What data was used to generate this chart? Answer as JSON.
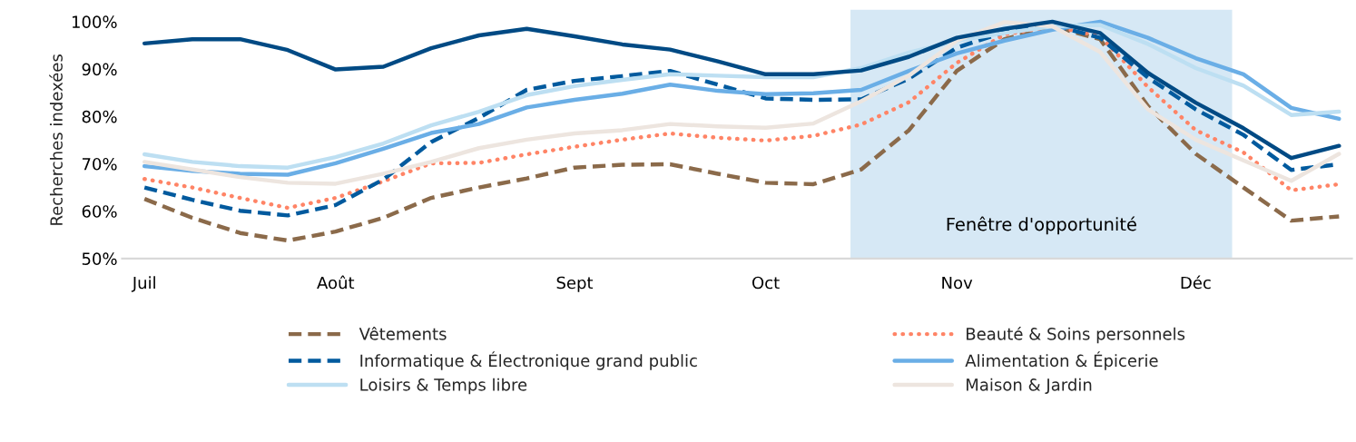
{
  "chart_data": {
    "type": "line",
    "ylabel": "Recherches indexées",
    "categories": [
      "Juil",
      null,
      null,
      null,
      "Août",
      null,
      null,
      null,
      null,
      "Sept",
      null,
      null,
      null,
      "Oct",
      null,
      null,
      null,
      "Nov",
      null,
      null,
      null,
      null,
      "Déc",
      null,
      null,
      null
    ],
    "ylim": [
      50,
      100
    ],
    "yticks": [
      {
        "value": 50,
        "label": "50%"
      },
      {
        "value": 60,
        "label": "60%"
      },
      {
        "value": 70,
        "label": "70%"
      },
      {
        "value": 80,
        "label": "80%"
      },
      {
        "value": 90,
        "label": "90%"
      },
      {
        "value": 100,
        "label": "100%"
      }
    ],
    "annotations": [
      "Fenêtre d'opportunité"
    ],
    "grid": false,
    "legend": "bottom",
    "series": [
      {
        "name": "Vêtements",
        "color": "#8b6a4a",
        "line_style": "dashed",
        "values": [
          62.6,
          58.6,
          55.4,
          53.8,
          55.7,
          58.6,
          62.8,
          65.0,
          66.9,
          69.2,
          69.8,
          69.9,
          67.9,
          66.0,
          65.7,
          68.8,
          77.1,
          89.6,
          96.3,
          99,
          96.3,
          82.2,
          72.1,
          65.0,
          58.0,
          58.9
        ]
      },
      {
        "name": "Beauté & Soins personnels",
        "color": "#ff8466",
        "line_style": "dotted",
        "values": [
          66.8,
          65.0,
          62.8,
          60.7,
          62.8,
          66.3,
          70.1,
          70.2,
          72.0,
          73.6,
          75.1,
          76.4,
          75.5,
          74.9,
          75.9,
          78.3,
          83.0,
          91.3,
          97.3,
          99,
          97,
          86.2,
          77.1,
          72.4,
          64.4,
          65.7
        ]
      },
      {
        "name": "Informatique & Électronique grand public",
        "color": "#005a9e",
        "line_style": "dashed",
        "values": [
          65.0,
          62.4,
          60.1,
          59.1,
          61.3,
          66.7,
          74.6,
          79.7,
          85.6,
          87.5,
          88.5,
          89.6,
          86.7,
          83.8,
          83.5,
          83.6,
          88.0,
          94.5,
          97.8,
          99.3,
          96.6,
          88.2,
          81.5,
          76.1,
          68.7,
          69.9
        ]
      },
      {
        "name": "Alimentation & Épicerie",
        "color": "#6aaee6",
        "line_style": "solid",
        "values": [
          69.5,
          68.5,
          67.9,
          67.7,
          70.1,
          73.2,
          76.5,
          78.4,
          81.9,
          83.5,
          84.8,
          86.7,
          85.4,
          84.7,
          84.9,
          85.6,
          89.6,
          93.3,
          96.0,
          98.3,
          100,
          96.6,
          92.3,
          88.9,
          81.8,
          79.5
        ]
      },
      {
        "name": "Loisirs & Temps libre",
        "color": "#bddff2",
        "line_style": "solid",
        "values": [
          72.0,
          70.4,
          69.5,
          69.2,
          71.4,
          74.3,
          78.1,
          81.0,
          84.5,
          86.4,
          87.7,
          88.9,
          88.6,
          88.3,
          88.3,
          90.2,
          93.5,
          96.0,
          97.6,
          99,
          99.3,
          95.3,
          90.2,
          86.5,
          80.3,
          81.0
        ]
      },
      {
        "name": "Maison & Jardin",
        "color": "#ede5df",
        "line_style": "solid",
        "values": [
          70.4,
          68.8,
          67.2,
          66.0,
          65.8,
          67.9,
          70.4,
          73.3,
          75.1,
          76.4,
          77.1,
          78.4,
          77.9,
          77.6,
          78.5,
          83.2,
          88.6,
          96.0,
          99.9,
          99,
          93.6,
          81.5,
          75.1,
          70.7,
          66.4,
          72.1
        ]
      },
      {
        "color": "#004a84",
        "line_style": "solid",
        "values": [
          95.4,
          96.3,
          96.3,
          94.0,
          89.9,
          90.5,
          94.4,
          97.1,
          98.5,
          96.9,
          95.2,
          94.1,
          91.6,
          88.9,
          88.9,
          89.7,
          92.6,
          96.6,
          98.5,
          100,
          97.6,
          89.2,
          82.9,
          77.5,
          71.2,
          73.8
        ]
      }
    ]
  }
}
